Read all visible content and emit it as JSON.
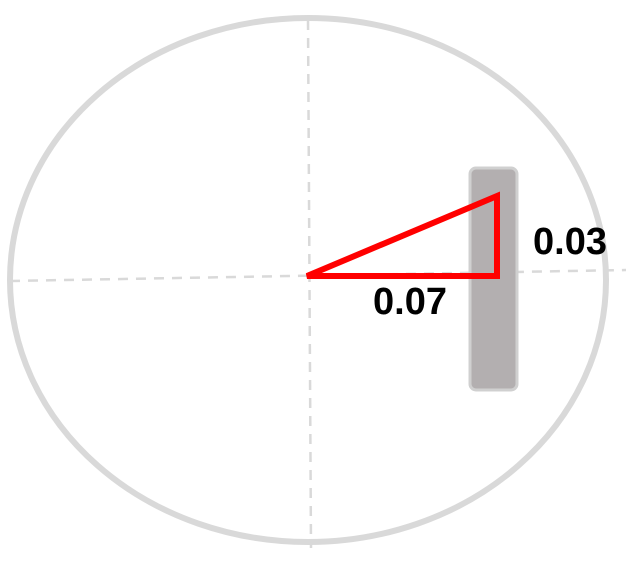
{
  "labels": {
    "horizontal_leg": "0.07",
    "vertical_leg": "0.03"
  },
  "colors": {
    "outline": "#d9d9d9",
    "crosshair": "#d9d9d9",
    "bar_fill": "#b3afb0",
    "bar_stroke": "#d0d0d0",
    "triangle": "#ff0000",
    "text": "#000000"
  }
}
